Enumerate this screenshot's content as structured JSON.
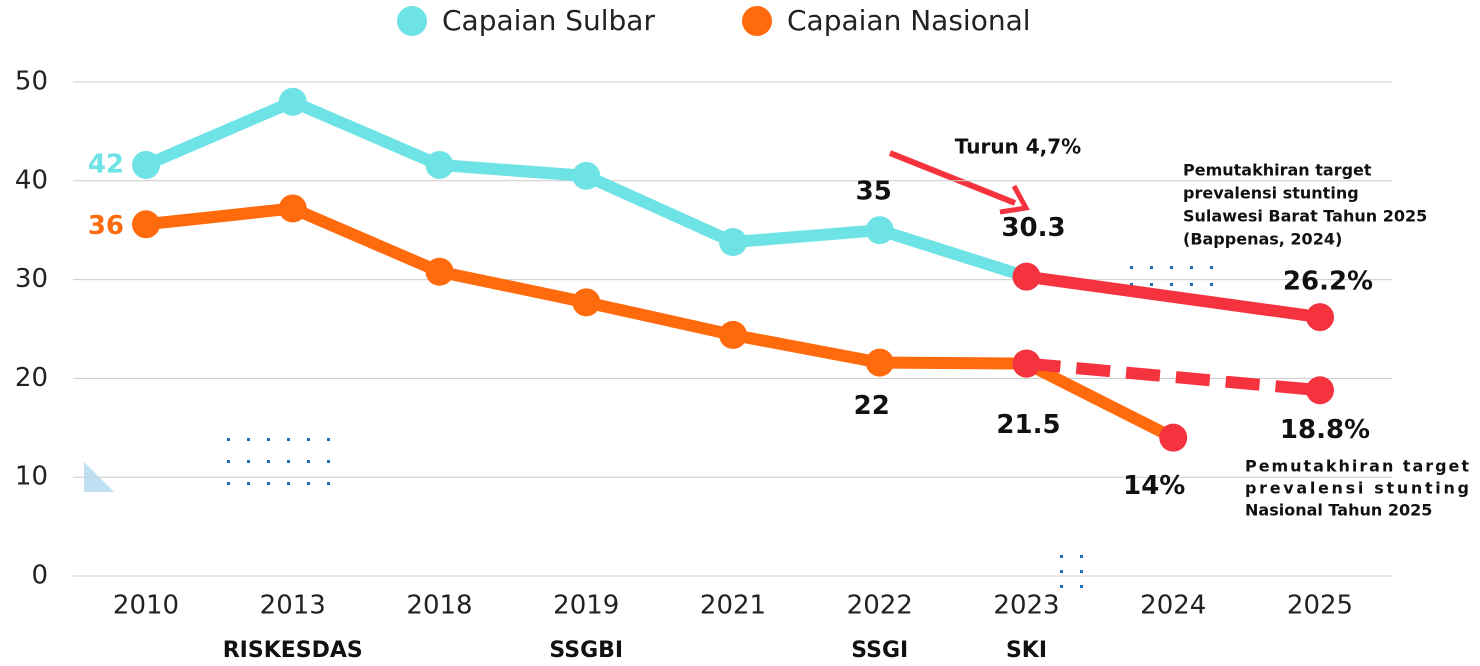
{
  "chart_data": {
    "type": "line",
    "categories": [
      "2010",
      "2013",
      "2018",
      "2019",
      "2021",
      "2022",
      "2023",
      "2024",
      "2025"
    ],
    "sources": [
      null,
      "RISKESDAS",
      null,
      "SSGBI",
      null,
      "SSGI",
      "SKI",
      null,
      null
    ],
    "ylim": [
      0,
      50
    ],
    "yticks": [
      0,
      10,
      20,
      30,
      40,
      50
    ],
    "grid": true,
    "legend": "top",
    "series": [
      {
        "name": "Capaian Sulbar",
        "color": "#6ee3e6",
        "values": [
          41.6,
          48,
          41.6,
          40.5,
          33.8,
          35,
          30.3,
          null,
          null
        ],
        "value_labels": [
          "42",
          null,
          null,
          null,
          null,
          "35",
          "30.3",
          null,
          null
        ]
      },
      {
        "name": "Capaian Nasional",
        "color": "#ff6a0d",
        "values": [
          35.6,
          37.2,
          30.8,
          27.7,
          24.4,
          21.6,
          21.5,
          14,
          null
        ],
        "value_labels": [
          "36",
          null,
          null,
          null,
          null,
          "22",
          "21.5",
          "14%",
          null
        ],
        "point_colors": [
          null,
          null,
          null,
          null,
          null,
          null,
          null,
          "#f5333f",
          null
        ]
      },
      {
        "color": "#f5333f",
        "values": [
          null,
          null,
          null,
          null,
          null,
          null,
          30.3,
          null,
          26.2
        ],
        "value_labels": [
          null,
          null,
          null,
          null,
          null,
          null,
          null,
          null,
          "26.2%"
        ]
      },
      {
        "color": "#f5333f",
        "dashed": true,
        "values": [
          null,
          null,
          null,
          null,
          null,
          null,
          21.5,
          null,
          18.8
        ],
        "value_labels": [
          null,
          null,
          null,
          null,
          null,
          null,
          null,
          null,
          "18.8%"
        ]
      }
    ],
    "annotations": {
      "decline": "Turun 4,7%",
      "sulbar_target_note": [
        "Pemutakhiran target",
        "prevalensi stunting",
        "Sulawesi Barat Tahun 2025",
        "(Bappenas, 2024)"
      ],
      "national_target_note": [
        "Pemutakhiran target",
        "prevalensi stunting",
        "Nasional Tahun 2025"
      ]
    }
  }
}
